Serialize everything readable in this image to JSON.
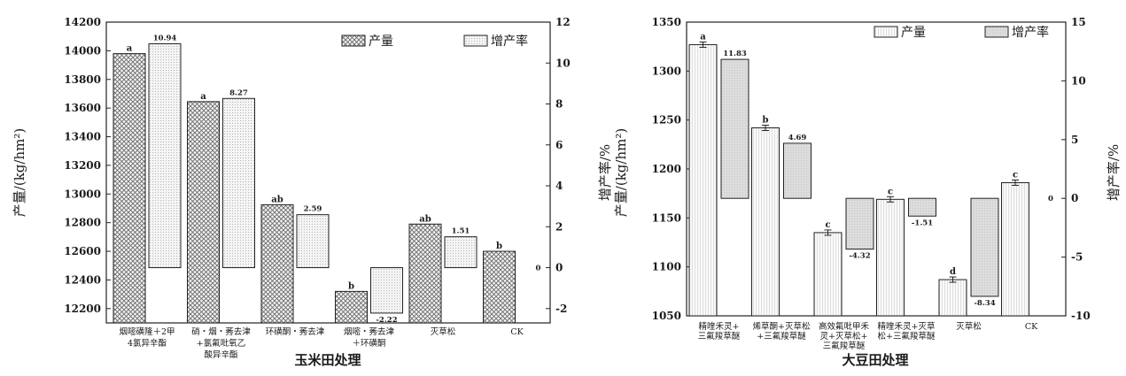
{
  "chart_data": [
    {
      "type": "bar",
      "xlabel": "玉米田处理",
      "ylabel": "产量/(kg/hm²)",
      "y2label": "增产率/%",
      "ylim": [
        12100,
        14200
      ],
      "y2lim": [
        -2.7,
        12
      ],
      "y_ticks": [
        12200,
        12400,
        12600,
        12800,
        13000,
        13200,
        13400,
        13600,
        13800,
        14000,
        14200
      ],
      "y2_ticks": [
        -2,
        0,
        2,
        4,
        6,
        8,
        10,
        12
      ],
      "legend": [
        "产量",
        "增产率"
      ],
      "legend_position": "top-right",
      "categories": [
        [
          "烟嘧磺隆＋2甲",
          "4氯异辛酯"
        ],
        [
          "硝・烟・莠去津",
          "+氯氟吡氧乙",
          "酸异辛酯"
        ],
        [
          "环磺酮・莠去津"
        ],
        [
          "烟嘧・莠去津",
          "＋环磺酮"
        ],
        [
          "灭草松"
        ],
        [
          "CK"
        ]
      ],
      "series": [
        {
          "name": "产量",
          "axis": "left",
          "values": [
            13980,
            13645,
            12925,
            12320,
            12790,
            12600
          ],
          "letters": [
            "a",
            "a",
            "ab",
            "b",
            "ab",
            "b"
          ]
        },
        {
          "name": "增产率",
          "axis": "right",
          "values": [
            10.94,
            8.27,
            2.59,
            -2.22,
            1.51,
            0
          ],
          "labels": [
            "10.94",
            "8.27",
            "2.59",
            "-2.22",
            "1.51",
            "0"
          ]
        }
      ]
    },
    {
      "type": "bar",
      "xlabel": "大豆田处理",
      "ylabel": "产量/(kg/hm²)",
      "y2label": "增产率/%",
      "ylim": [
        1050,
        1350
      ],
      "y2lim": [
        -10,
        15
      ],
      "y_ticks": [
        1050,
        1100,
        1150,
        1200,
        1250,
        1300,
        1350
      ],
      "y2_ticks": [
        -10,
        -5,
        0,
        5,
        10,
        15
      ],
      "legend": [
        "产量",
        "增产率"
      ],
      "legend_position": "top-right",
      "categories": [
        [
          "精喹禾灵+",
          "三氟羧草醚"
        ],
        [
          "烯草酮+灭草松",
          "+三氟羧草醚"
        ],
        [
          "高效氟吡甲禾",
          "灵+灭草松+",
          "三氟羧草醚"
        ],
        [
          "精喹禾灵+灭草",
          "松+三氟羧草醚"
        ],
        [
          "灭草松"
        ],
        [
          "CK"
        ]
      ],
      "series": [
        {
          "name": "产量",
          "axis": "left",
          "values": [
            1327,
            1242,
            1135,
            1169,
            1087,
            1186
          ],
          "letters": [
            "a",
            "b",
            "c",
            "c",
            "d",
            "c"
          ]
        },
        {
          "name": "增产率",
          "axis": "right",
          "values": [
            11.83,
            4.69,
            -4.32,
            -1.51,
            -8.34,
            0
          ],
          "labels": [
            "11.83",
            "4.69",
            "-4.32",
            "-1.51",
            "-8.34",
            "0"
          ]
        }
      ]
    }
  ]
}
